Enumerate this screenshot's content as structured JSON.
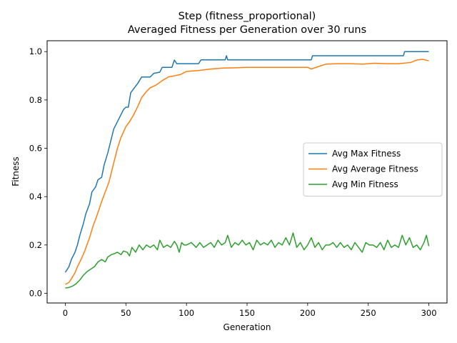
{
  "chart_data": {
    "type": "line",
    "title": "Step (fitness_proportional)",
    "subtitle": "Averaged Fitness per Generation over 30 runs",
    "xlabel": "Generation",
    "ylabel": "Fitness",
    "xlim": [
      -15,
      315
    ],
    "ylim": [
      -0.04,
      1.045
    ],
    "xticks": [
      0,
      50,
      100,
      150,
      200,
      250,
      300
    ],
    "yticks": [
      0.0,
      0.2,
      0.4,
      0.6,
      0.8,
      1.0
    ],
    "xtick_labels": [
      "0",
      "50",
      "100",
      "150",
      "200",
      "250",
      "300"
    ],
    "ytick_labels": [
      "0.0",
      "0.2",
      "0.4",
      "0.6",
      "0.8",
      "1.0"
    ],
    "grid": false,
    "legend_position": "center-right",
    "series": [
      {
        "name": "Avg Max Fitness",
        "color": "#1f77b4",
        "points": [
          [
            0,
            0.087
          ],
          [
            3,
            0.11
          ],
          [
            5,
            0.14
          ],
          [
            8,
            0.17
          ],
          [
            10,
            0.2
          ],
          [
            12,
            0.24
          ],
          [
            15,
            0.29
          ],
          [
            17,
            0.33
          ],
          [
            20,
            0.37
          ],
          [
            22,
            0.42
          ],
          [
            25,
            0.44
          ],
          [
            27,
            0.47
          ],
          [
            30,
            0.48
          ],
          [
            32,
            0.53
          ],
          [
            35,
            0.58
          ],
          [
            37,
            0.62
          ],
          [
            40,
            0.68
          ],
          [
            42,
            0.7
          ],
          [
            45,
            0.73
          ],
          [
            48,
            0.76
          ],
          [
            50,
            0.77
          ],
          [
            52,
            0.77
          ],
          [
            54,
            0.83
          ],
          [
            57,
            0.85
          ],
          [
            60,
            0.87
          ],
          [
            63,
            0.895
          ],
          [
            70,
            0.895
          ],
          [
            73,
            0.91
          ],
          [
            78,
            0.915
          ],
          [
            80,
            0.935
          ],
          [
            88,
            0.935
          ],
          [
            90,
            0.965
          ],
          [
            92,
            0.95
          ],
          [
            110,
            0.95
          ],
          [
            112,
            0.966
          ],
          [
            132,
            0.966
          ],
          [
            133,
            0.983
          ],
          [
            134,
            0.966
          ],
          [
            203,
            0.966
          ],
          [
            204,
            0.983
          ],
          [
            279,
            0.983
          ],
          [
            280,
            1.0
          ],
          [
            300,
            1.0
          ]
        ]
      },
      {
        "name": "Avg Average Fitness",
        "color": "#ff7f0e",
        "points": [
          [
            0,
            0.037
          ],
          [
            3,
            0.045
          ],
          [
            5,
            0.06
          ],
          [
            8,
            0.085
          ],
          [
            10,
            0.11
          ],
          [
            13,
            0.14
          ],
          [
            16,
            0.175
          ],
          [
            20,
            0.23
          ],
          [
            23,
            0.28
          ],
          [
            26,
            0.32
          ],
          [
            30,
            0.38
          ],
          [
            33,
            0.42
          ],
          [
            36,
            0.46
          ],
          [
            40,
            0.54
          ],
          [
            43,
            0.6
          ],
          [
            46,
            0.645
          ],
          [
            50,
            0.69
          ],
          [
            53,
            0.71
          ],
          [
            56,
            0.735
          ],
          [
            60,
            0.775
          ],
          [
            63,
            0.81
          ],
          [
            67,
            0.835
          ],
          [
            70,
            0.85
          ],
          [
            75,
            0.862
          ],
          [
            80,
            0.88
          ],
          [
            85,
            0.895
          ],
          [
            90,
            0.9
          ],
          [
            95,
            0.905
          ],
          [
            100,
            0.918
          ],
          [
            110,
            0.922
          ],
          [
            120,
            0.928
          ],
          [
            130,
            0.932
          ],
          [
            140,
            0.933
          ],
          [
            150,
            0.935
          ],
          [
            160,
            0.935
          ],
          [
            170,
            0.935
          ],
          [
            180,
            0.935
          ],
          [
            190,
            0.935
          ],
          [
            200,
            0.935
          ],
          [
            203,
            0.928
          ],
          [
            210,
            0.94
          ],
          [
            215,
            0.948
          ],
          [
            225,
            0.95
          ],
          [
            235,
            0.95
          ],
          [
            245,
            0.948
          ],
          [
            255,
            0.952
          ],
          [
            265,
            0.95
          ],
          [
            275,
            0.95
          ],
          [
            285,
            0.955
          ],
          [
            290,
            0.965
          ],
          [
            295,
            0.968
          ],
          [
            300,
            0.962
          ]
        ]
      },
      {
        "name": "Avg Min Fitness",
        "color": "#2ca02c",
        "points": [
          [
            0,
            0.022
          ],
          [
            3,
            0.024
          ],
          [
            6,
            0.03
          ],
          [
            9,
            0.04
          ],
          [
            12,
            0.055
          ],
          [
            15,
            0.075
          ],
          [
            18,
            0.09
          ],
          [
            21,
            0.1
          ],
          [
            24,
            0.11
          ],
          [
            27,
            0.13
          ],
          [
            30,
            0.14
          ],
          [
            33,
            0.13
          ],
          [
            35,
            0.15
          ],
          [
            38,
            0.16
          ],
          [
            41,
            0.165
          ],
          [
            43,
            0.17
          ],
          [
            46,
            0.16
          ],
          [
            48,
            0.175
          ],
          [
            51,
            0.17
          ],
          [
            53,
            0.155
          ],
          [
            55,
            0.19
          ],
          [
            58,
            0.17
          ],
          [
            61,
            0.2
          ],
          [
            64,
            0.18
          ],
          [
            67,
            0.2
          ],
          [
            70,
            0.19
          ],
          [
            73,
            0.2
          ],
          [
            76,
            0.18
          ],
          [
            78,
            0.22
          ],
          [
            81,
            0.19
          ],
          [
            84,
            0.2
          ],
          [
            87,
            0.19
          ],
          [
            90,
            0.215
          ],
          [
            92,
            0.2
          ],
          [
            94,
            0.17
          ],
          [
            96,
            0.21
          ],
          [
            98,
            0.2
          ],
          [
            100,
            0.2
          ],
          [
            104,
            0.21
          ],
          [
            108,
            0.19
          ],
          [
            111,
            0.21
          ],
          [
            114,
            0.19
          ],
          [
            117,
            0.2
          ],
          [
            120,
            0.21
          ],
          [
            123,
            0.19
          ],
          [
            126,
            0.22
          ],
          [
            129,
            0.2
          ],
          [
            132,
            0.21
          ],
          [
            134,
            0.24
          ],
          [
            137,
            0.19
          ],
          [
            140,
            0.21
          ],
          [
            143,
            0.2
          ],
          [
            146,
            0.22
          ],
          [
            149,
            0.2
          ],
          [
            152,
            0.21
          ],
          [
            155,
            0.18
          ],
          [
            158,
            0.22
          ],
          [
            161,
            0.2
          ],
          [
            164,
            0.21
          ],
          [
            167,
            0.2
          ],
          [
            170,
            0.22
          ],
          [
            173,
            0.19
          ],
          [
            176,
            0.21
          ],
          [
            179,
            0.2
          ],
          [
            182,
            0.23
          ],
          [
            185,
            0.2
          ],
          [
            188,
            0.25
          ],
          [
            191,
            0.19
          ],
          [
            194,
            0.21
          ],
          [
            197,
            0.18
          ],
          [
            200,
            0.2
          ],
          [
            203,
            0.23
          ],
          [
            206,
            0.19
          ],
          [
            209,
            0.21
          ],
          [
            212,
            0.18
          ],
          [
            215,
            0.2
          ],
          [
            218,
            0.2
          ],
          [
            221,
            0.21
          ],
          [
            224,
            0.19
          ],
          [
            227,
            0.21
          ],
          [
            230,
            0.19
          ],
          [
            233,
            0.2
          ],
          [
            236,
            0.18
          ],
          [
            239,
            0.21
          ],
          [
            242,
            0.19
          ],
          [
            245,
            0.17
          ],
          [
            248,
            0.21
          ],
          [
            251,
            0.2
          ],
          [
            254,
            0.2
          ],
          [
            257,
            0.19
          ],
          [
            260,
            0.21
          ],
          [
            263,
            0.18
          ],
          [
            266,
            0.22
          ],
          [
            269,
            0.19
          ],
          [
            272,
            0.2
          ],
          [
            275,
            0.19
          ],
          [
            278,
            0.24
          ],
          [
            281,
            0.2
          ],
          [
            284,
            0.23
          ],
          [
            287,
            0.19
          ],
          [
            290,
            0.2
          ],
          [
            293,
            0.18
          ],
          [
            296,
            0.21
          ],
          [
            298,
            0.24
          ],
          [
            300,
            0.195
          ]
        ]
      }
    ]
  }
}
